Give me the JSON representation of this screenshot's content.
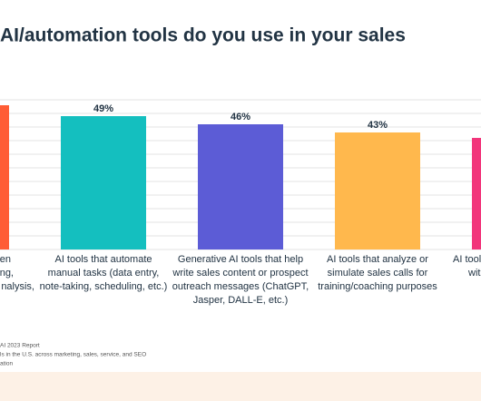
{
  "chart_data": {
    "type": "bar",
    "title": "AI/automation tools do you use in your sales",
    "categories": [
      [
        "driven",
        "esting,",
        "nalysis,"
      ],
      [
        "AI tools that automate",
        "manual tasks (data entry,",
        "note-taking, scheduling, etc.)"
      ],
      [
        "Generative AI tools that help",
        "write sales content or prospect",
        "outreach messages (ChatGPT,",
        "Jasper, DALL-E, etc.)"
      ],
      [
        "AI tools that analyze or",
        "simulate sales calls for",
        "training/coaching purposes"
      ],
      [
        "AI tool",
        "wit"
      ]
    ],
    "values": [
      53,
      49,
      46,
      43,
      41
    ],
    "value_labels": [
      null,
      "49%",
      "46%",
      "43%",
      null
    ],
    "colors": [
      "#ff5c35",
      "#14bfbf",
      "#5c5cd6",
      "#ffb84d",
      "#f2357b"
    ],
    "ylim": [
      0,
      55
    ],
    "yticks": [
      0,
      5,
      10,
      15,
      20,
      25,
      30,
      35,
      40,
      45,
      50,
      55
    ],
    "grid": true,
    "footer": [
      "AI 2023 Report",
      "ls in the U.S. across marketing, sales, service, and SEO",
      "ation"
    ]
  }
}
